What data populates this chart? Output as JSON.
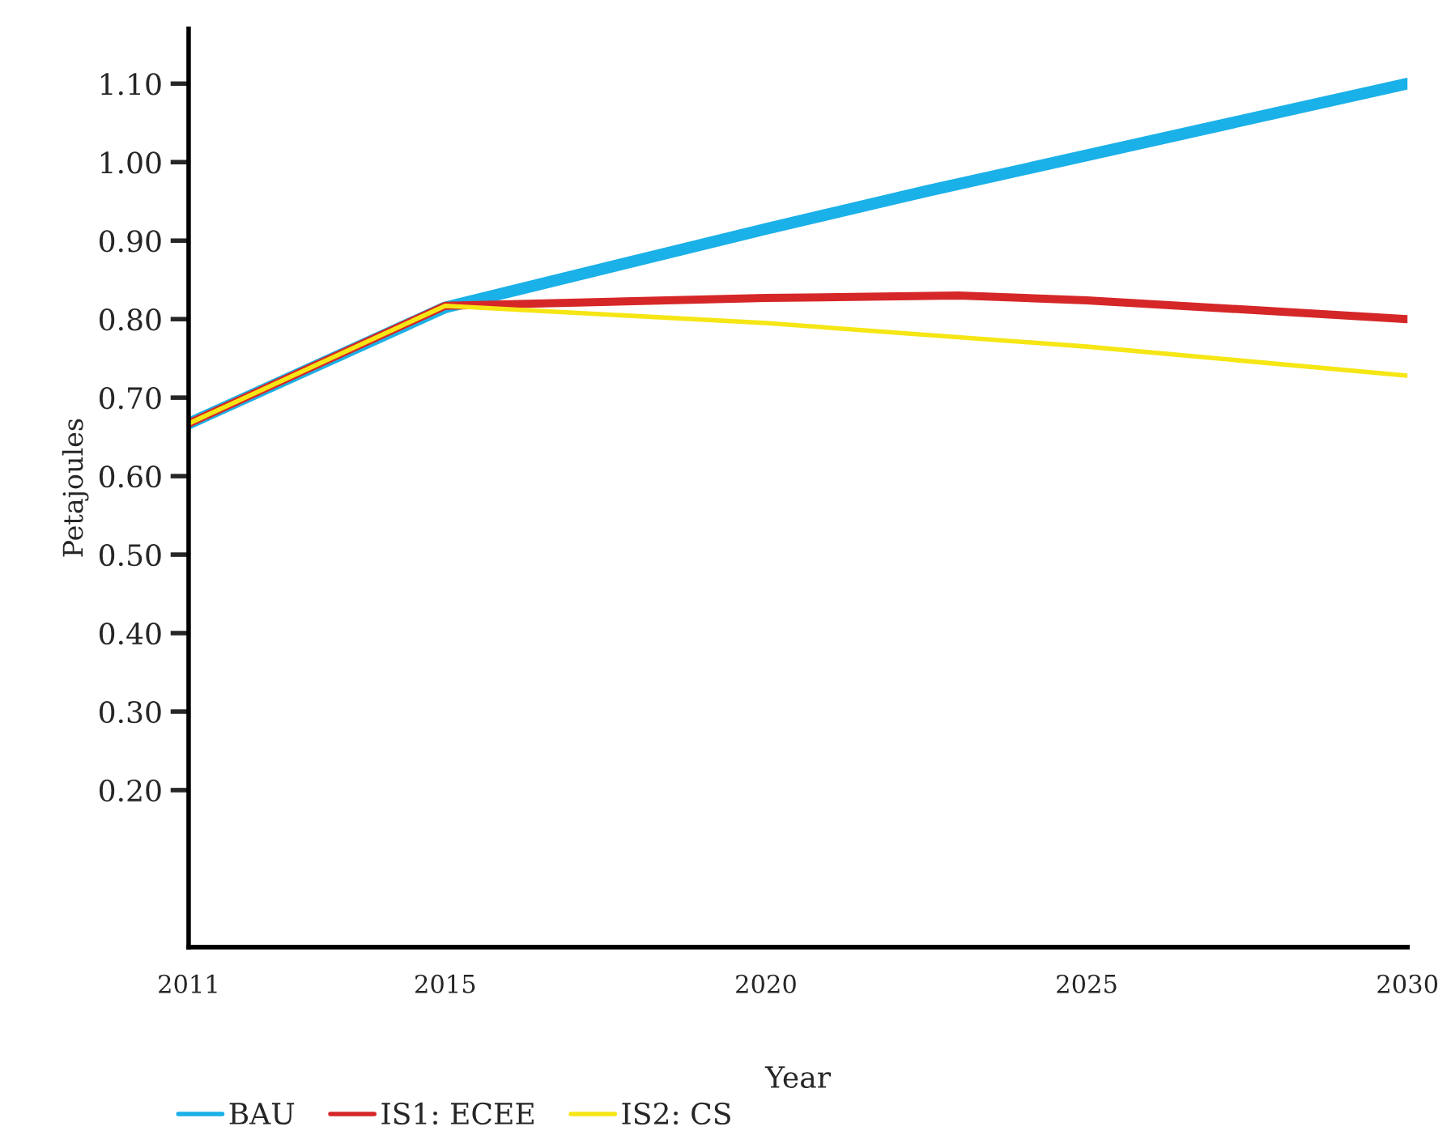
{
  "chart_data": {
    "type": "line",
    "xlabel": "Year",
    "ylabel": "Petajoules",
    "xlim": [
      2011,
      2030
    ],
    "xticks": [
      2011,
      2015,
      2020,
      2025,
      2030
    ],
    "ylim": [
      0,
      1.17
    ],
    "yticks": [
      {
        "value": 0.2,
        "label": "0.20"
      },
      {
        "value": 0.3,
        "label": "0.30"
      },
      {
        "value": 0.4,
        "label": "0.40"
      },
      {
        "value": 0.5,
        "label": "0.50"
      },
      {
        "value": 0.6,
        "label": "0.60"
      },
      {
        "value": 0.7,
        "label": "0.70"
      },
      {
        "value": 0.8,
        "label": "0.80"
      },
      {
        "value": 0.9,
        "label": "0.90"
      },
      {
        "value": 1.0,
        "label": "1.00"
      },
      {
        "value": 1.1,
        "label": "1.10"
      }
    ],
    "grid": false,
    "legend": "bottom left",
    "marker": "none",
    "line_style": "solid",
    "series": [
      {
        "name": "BAU",
        "color": "#1ab0e8",
        "x": [
          2011,
          2015,
          2020,
          2022.5,
          2030
        ],
        "values": [
          0.667,
          0.815,
          0.915,
          0.963,
          1.1
        ]
      },
      {
        "name": "IS1: ECEE",
        "color": "#d62728",
        "x": [
          2011,
          2015,
          2020,
          2023,
          2025,
          2030
        ],
        "values": [
          0.667,
          0.817,
          0.827,
          0.83,
          0.824,
          0.8
        ]
      },
      {
        "name": "IS2: CS",
        "color": "#f5e614",
        "x": [
          2011,
          2015,
          2020,
          2025,
          2030
        ],
        "values": [
          0.667,
          0.817,
          0.795,
          0.765,
          0.728
        ]
      }
    ]
  }
}
